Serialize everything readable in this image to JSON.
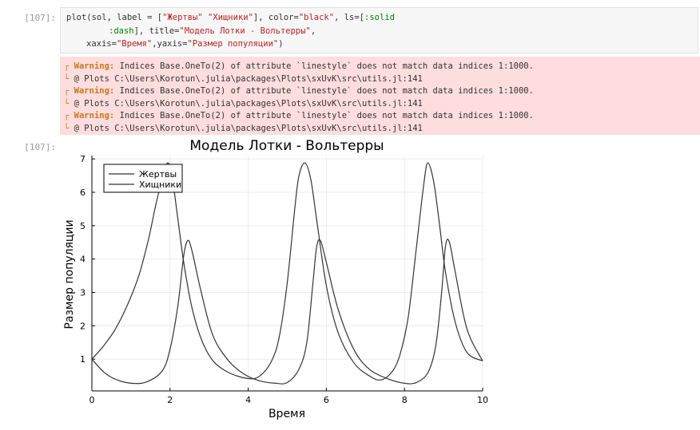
{
  "cells": {
    "input_prompt": "[107]:",
    "output_prompt": "[107]:",
    "code": {
      "l1_a": "plot(sol, label = [",
      "l1_s1": "\"Жертвы\"",
      "l1_sp": " ",
      "l1_s2": "\"Хищники\"",
      "l1_b": "], color=",
      "l1_s3": "\"black\"",
      "l1_c": ", ls=[",
      "l1_sym": ":solid",
      "l2_sym": ":dash",
      "l2_a": "], title=",
      "l2_s": "\"Модель Лотки - Вольтерры\"",
      "l2_b": ",",
      "l3_a": "xaxis=",
      "l3_s1": "\"Время\"",
      "l3_b": ",yaxis=",
      "l3_s2": "\"Размер популяции\"",
      "l3_c": ")"
    },
    "warnings": [
      {
        "bracket": "┌",
        "label": "Warning:",
        "message": "Indices Base.OneTo(2) of attribute `linestyle` does not match data indices 1:1000.",
        "src_bracket": "└",
        "src": "@ Plots C:\\Users\\Korotun\\.julia\\packages\\Plots\\sxUvK\\src\\utils.jl:141"
      },
      {
        "bracket": "┌",
        "label": "Warning:",
        "message": "Indices Base.OneTo(2) of attribute `linestyle` does not match data indices 1:1000.",
        "src_bracket": "└",
        "src": "@ Plots C:\\Users\\Korotun\\.julia\\packages\\Plots\\sxUvK\\src\\utils.jl:141"
      },
      {
        "bracket": "┌",
        "label": "Warning:",
        "message": "Indices Base.OneTo(2) of attribute `linestyle` does not match data indices 1:1000.",
        "src_bracket": "└",
        "src": "@ Plots C:\\Users\\Korotun\\.julia\\packages\\Plots\\sxUvK\\src\\utils.jl:141"
      }
    ]
  },
  "chart_data": {
    "type": "line",
    "title": "Модель Лотки - Вольтерры",
    "xlabel": "Время",
    "ylabel": "Размер популяции",
    "xlim": [
      0,
      10
    ],
    "ylim": [
      0.05,
      7.1
    ],
    "xticks": [
      "0",
      "2",
      "4",
      "6",
      "8",
      "10"
    ],
    "yticks": [
      "1",
      "2",
      "3",
      "4",
      "5",
      "6",
      "7"
    ],
    "grid": true,
    "legend_position": "top-left",
    "line_color": "#333333",
    "series": [
      {
        "name": "Жертвы",
        "x": [
          0,
          0.3,
          0.6,
          0.9,
          1.2,
          1.45,
          1.65,
          1.85,
          1.95,
          2.05,
          2.2,
          2.35,
          2.55,
          2.8,
          3.1,
          3.5,
          4.0,
          4.3,
          4.6,
          4.8,
          5.0,
          5.2,
          5.3,
          5.45,
          5.6,
          5.75,
          6.0,
          6.3,
          6.7,
          7.1,
          7.4,
          7.7,
          7.9,
          8.1,
          8.3,
          8.5,
          8.6,
          8.75,
          8.9,
          9.05,
          9.3,
          9.6,
          10.0
        ],
        "y": [
          1.0,
          1.4,
          1.9,
          2.6,
          3.5,
          4.6,
          5.7,
          6.6,
          6.88,
          6.5,
          5.2,
          3.9,
          2.6,
          1.6,
          0.95,
          0.6,
          0.42,
          0.5,
          0.95,
          1.7,
          3.3,
          5.6,
          6.5,
          6.88,
          6.4,
          5.2,
          3.2,
          1.8,
          0.9,
          0.5,
          0.38,
          0.65,
          1.2,
          2.3,
          4.3,
          6.3,
          6.88,
          6.3,
          5.0,
          3.6,
          2.1,
          1.2,
          0.95
        ]
      },
      {
        "name": "Хищники",
        "x": [
          0,
          0.3,
          0.6,
          1.0,
          1.4,
          1.8,
          2.0,
          2.2,
          2.35,
          2.45,
          2.55,
          2.8,
          3.1,
          3.5,
          3.9,
          4.3,
          4.7,
          5.0,
          5.3,
          5.5,
          5.65,
          5.75,
          5.85,
          6.0,
          6.3,
          6.7,
          7.1,
          7.6,
          8.0,
          8.3,
          8.6,
          8.8,
          8.95,
          9.05,
          9.15,
          9.3,
          9.6,
          10.0
        ],
        "y": [
          1.0,
          0.62,
          0.4,
          0.28,
          0.32,
          0.65,
          1.3,
          2.6,
          4.1,
          4.55,
          4.3,
          3.0,
          1.7,
          0.95,
          0.55,
          0.35,
          0.28,
          0.3,
          0.7,
          1.5,
          3.2,
          4.35,
          4.55,
          3.9,
          2.5,
          1.3,
          0.7,
          0.4,
          0.28,
          0.3,
          0.6,
          1.4,
          3.0,
          4.4,
          4.5,
          3.6,
          1.9,
          0.95
        ]
      }
    ]
  }
}
